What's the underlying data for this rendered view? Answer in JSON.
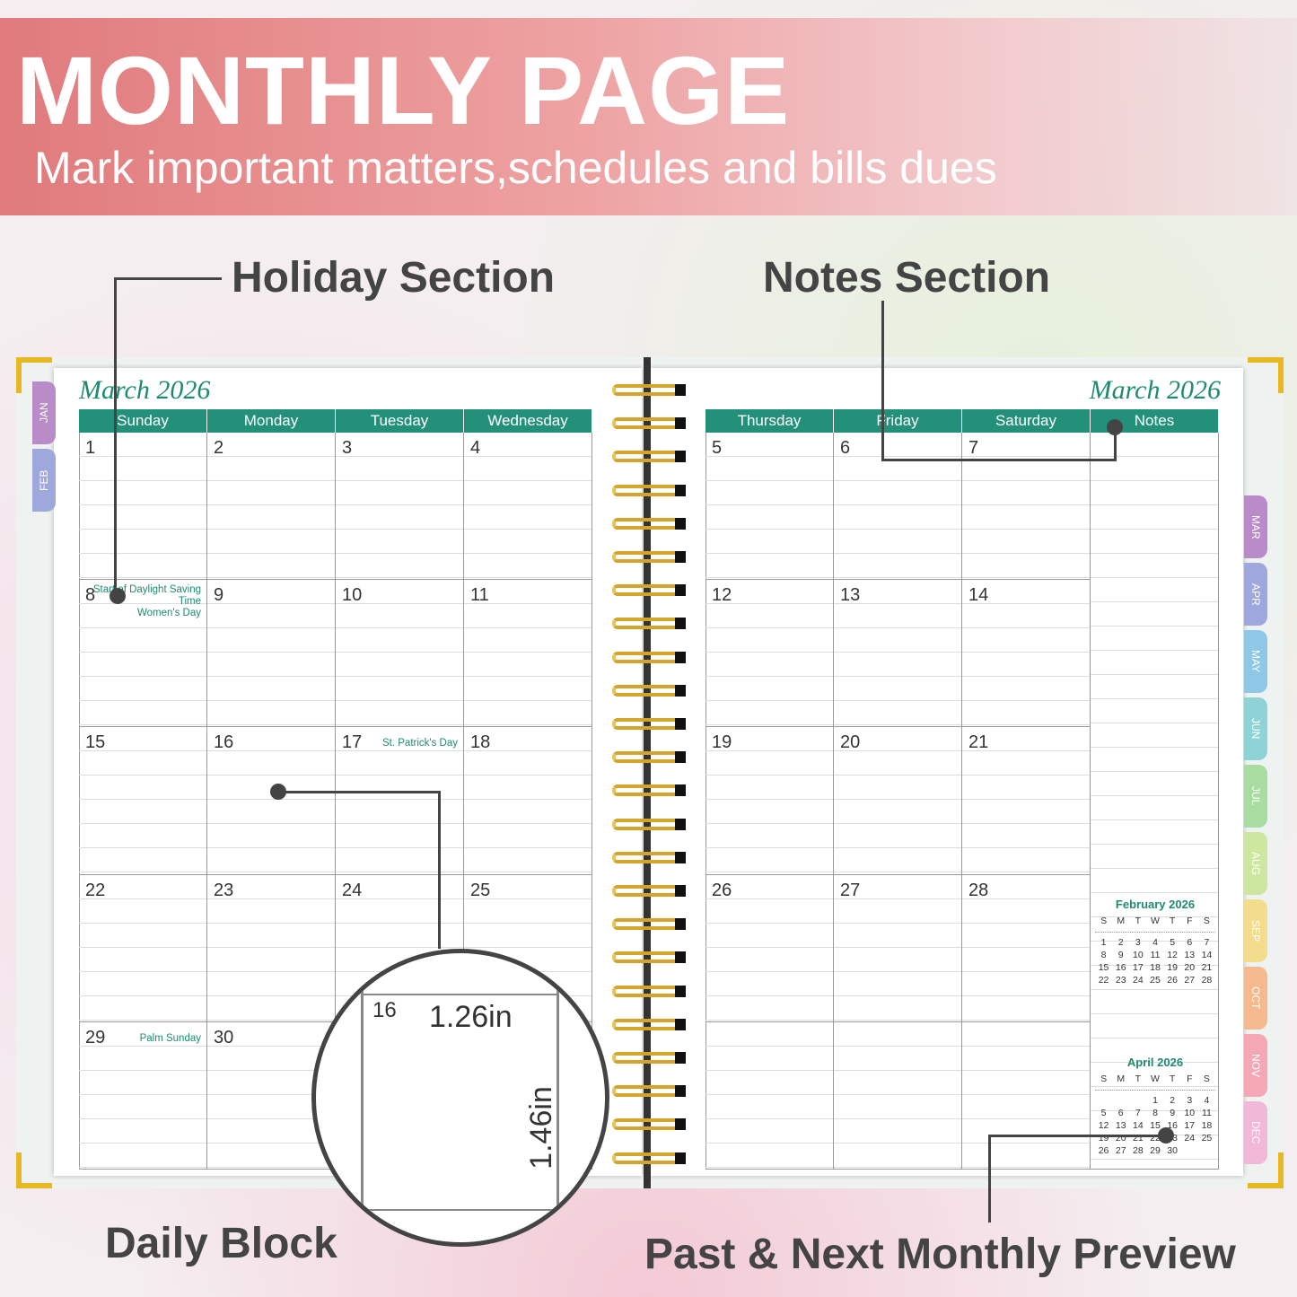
{
  "banner": {
    "title": "MONTHLY PAGE",
    "subtitle": "Mark important matters,schedules and bills dues"
  },
  "labels": {
    "holiday": "Holiday Section",
    "notes": "Notes Section",
    "daily": "Daily Block",
    "preview": "Past & Next Monthly Preview"
  },
  "planner": {
    "month_title": "March 2026",
    "left_headers": [
      "Sunday",
      "Monday",
      "Tuesday",
      "Wednesday"
    ],
    "right_headers": [
      "Thursday",
      "Friday",
      "Saturday",
      "Notes"
    ],
    "left_rows": [
      [
        "1",
        "2",
        "3",
        "4"
      ],
      [
        "8",
        "9",
        "10",
        "11"
      ],
      [
        "15",
        "16",
        "17",
        "18"
      ],
      [
        "22",
        "23",
        "24",
        "25"
      ],
      [
        "29",
        "30",
        "",
        ""
      ]
    ],
    "right_rows": [
      [
        "5",
        "6",
        "7"
      ],
      [
        "12",
        "13",
        "14"
      ],
      [
        "19",
        "20",
        "21"
      ],
      [
        "26",
        "27",
        "28"
      ],
      [
        "",
        "",
        ""
      ]
    ],
    "holidays": {
      "8": "Start of Daylight Saving Time\nWomen's Day",
      "17": "St. Patrick's Day",
      "29": "Palm Sunday"
    },
    "left_tabs": [
      "JAN",
      "FEB"
    ],
    "right_tabs": [
      "MAR",
      "APR",
      "MAY",
      "JUN",
      "JUL",
      "AUG",
      "SEP",
      "OCT",
      "NOV",
      "DEC"
    ],
    "tab_colors": [
      "#b98bc9",
      "#9fa8dc",
      "#8ec8e6",
      "#8fd3d6",
      "#a8dca0",
      "#cde6a0",
      "#f3dc8c",
      "#f5b98e",
      "#f4a7b5",
      "#f2b8d8"
    ],
    "accent": "#23917a"
  },
  "mini_calendars": [
    {
      "title": "February 2026",
      "weekdays": [
        "S",
        "M",
        "T",
        "W",
        "T",
        "F",
        "S"
      ],
      "days": [
        "1",
        "2",
        "3",
        "4",
        "5",
        "6",
        "7",
        "8",
        "9",
        "10",
        "11",
        "12",
        "13",
        "14",
        "15",
        "16",
        "17",
        "18",
        "19",
        "20",
        "21",
        "22",
        "23",
        "24",
        "25",
        "26",
        "27",
        "28"
      ],
      "offset": 0
    },
    {
      "title": "April 2026",
      "weekdays": [
        "S",
        "M",
        "T",
        "W",
        "T",
        "F",
        "S"
      ],
      "days": [
        "1",
        "2",
        "3",
        "4",
        "5",
        "6",
        "7",
        "8",
        "9",
        "10",
        "11",
        "12",
        "13",
        "14",
        "15",
        "16",
        "17",
        "18",
        "19",
        "20",
        "21",
        "22",
        "23",
        "24",
        "25",
        "26",
        "27",
        "28",
        "29",
        "30"
      ],
      "offset": 3
    }
  ],
  "magnifier": {
    "day": "16",
    "width": "1.26in",
    "height": "1.46in"
  }
}
